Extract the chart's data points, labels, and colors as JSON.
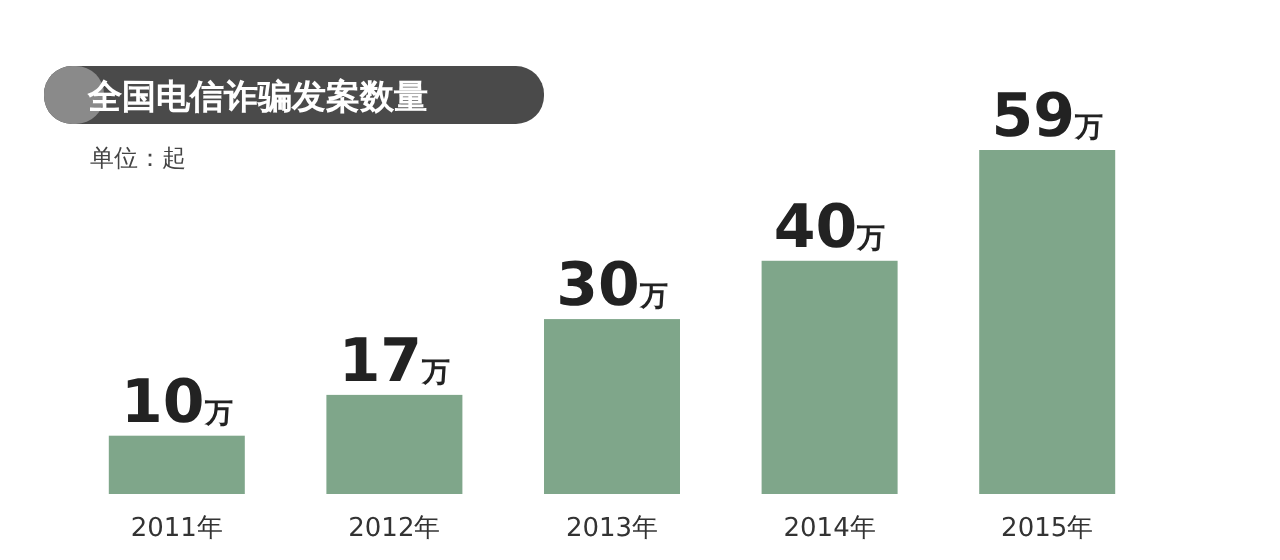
{
  "chart_data": {
    "type": "bar",
    "title": "全国电信诈骗发案数量",
    "subtitle": "单位：起",
    "categories": [
      "2011年",
      "2012年",
      "2013年",
      "2014年",
      "2015年"
    ],
    "values": [
      10,
      17,
      30,
      40,
      59
    ],
    "value_labels": [
      "10万",
      "17万",
      "30万",
      "40万",
      "59万"
    ],
    "color": "#7fa68a"
  }
}
